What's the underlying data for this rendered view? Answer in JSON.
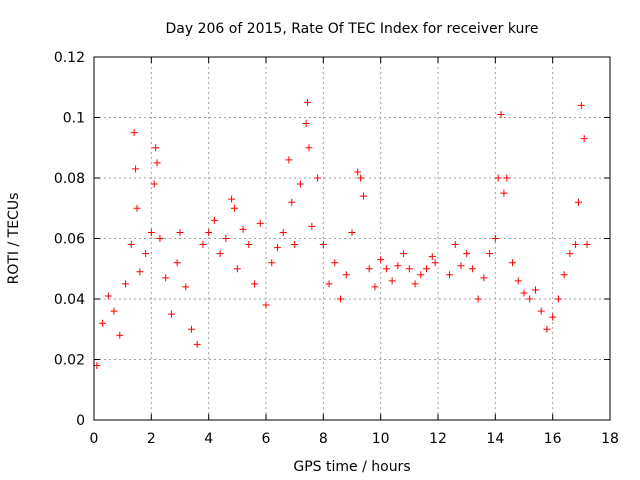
{
  "chart_data": {
    "type": "scatter",
    "title": "Day 206 of 2015, Rate Of TEC Index for receiver kure",
    "xlabel": "GPS time / hours",
    "ylabel": "ROTI / TECUs",
    "xlim": [
      0,
      18
    ],
    "ylim": [
      0,
      0.12
    ],
    "xticks": [
      0,
      2,
      4,
      6,
      8,
      10,
      12,
      14,
      16,
      18
    ],
    "xtick_labels": [
      "0",
      "2",
      "4",
      "6",
      "8",
      "10",
      "12",
      "14",
      "16",
      "18"
    ],
    "yticks": [
      0,
      0.02,
      0.04,
      0.06,
      0.08,
      0.1,
      0.12
    ],
    "ytick_labels": [
      "0",
      "0.02",
      "0.04",
      "0.06",
      "0.08",
      "0.1",
      "0.12"
    ],
    "grid": true,
    "marker": "+",
    "color": "#ff0000",
    "series": [
      {
        "name": "ROTI",
        "x": [
          0.1,
          0.3,
          0.5,
          0.7,
          0.9,
          1.1,
          1.3,
          1.4,
          1.45,
          1.5,
          1.6,
          1.8,
          2.0,
          2.1,
          2.15,
          2.2,
          2.3,
          2.5,
          2.7,
          2.9,
          3.0,
          3.2,
          3.4,
          3.6,
          3.8,
          4.0,
          4.2,
          4.4,
          4.6,
          4.8,
          4.9,
          5.0,
          5.2,
          5.4,
          5.6,
          5.8,
          6.0,
          6.2,
          6.4,
          6.6,
          6.8,
          6.9,
          7.0,
          7.2,
          7.4,
          7.45,
          7.5,
          7.6,
          7.8,
          8.0,
          8.2,
          8.4,
          8.6,
          8.8,
          9.0,
          9.2,
          9.3,
          9.4,
          9.6,
          9.8,
          10.0,
          10.2,
          10.4,
          10.6,
          10.8,
          11.0,
          11.2,
          11.4,
          11.6,
          11.8,
          11.9,
          12.4,
          12.6,
          12.8,
          13.0,
          13.2,
          13.4,
          13.6,
          13.8,
          14.0,
          14.1,
          14.2,
          14.3,
          14.4,
          14.6,
          14.8,
          15.0,
          15.2,
          15.4,
          15.6,
          15.8,
          16.0,
          16.2,
          16.4,
          16.6,
          16.8,
          16.9,
          17.0,
          17.1,
          17.2
        ],
        "y": [
          0.018,
          0.032,
          0.041,
          0.036,
          0.028,
          0.045,
          0.058,
          0.095,
          0.083,
          0.07,
          0.049,
          0.055,
          0.062,
          0.078,
          0.09,
          0.085,
          0.06,
          0.047,
          0.035,
          0.052,
          0.062,
          0.044,
          0.03,
          0.025,
          0.058,
          0.062,
          0.066,
          0.055,
          0.06,
          0.073,
          0.07,
          0.05,
          0.063,
          0.058,
          0.045,
          0.065,
          0.038,
          0.052,
          0.057,
          0.062,
          0.086,
          0.072,
          0.058,
          0.078,
          0.098,
          0.105,
          0.09,
          0.064,
          0.08,
          0.058,
          0.045,
          0.052,
          0.04,
          0.048,
          0.062,
          0.082,
          0.08,
          0.074,
          0.05,
          0.044,
          0.053,
          0.05,
          0.046,
          0.051,
          0.055,
          0.05,
          0.045,
          0.048,
          0.05,
          0.054,
          0.052,
          0.048,
          0.058,
          0.051,
          0.055,
          0.05,
          0.04,
          0.047,
          0.055,
          0.06,
          0.08,
          0.101,
          0.075,
          0.08,
          0.052,
          0.046,
          0.042,
          0.04,
          0.043,
          0.036,
          0.03,
          0.034,
          0.04,
          0.048,
          0.055,
          0.058,
          0.072,
          0.104,
          0.093,
          0.058
        ]
      }
    ]
  }
}
